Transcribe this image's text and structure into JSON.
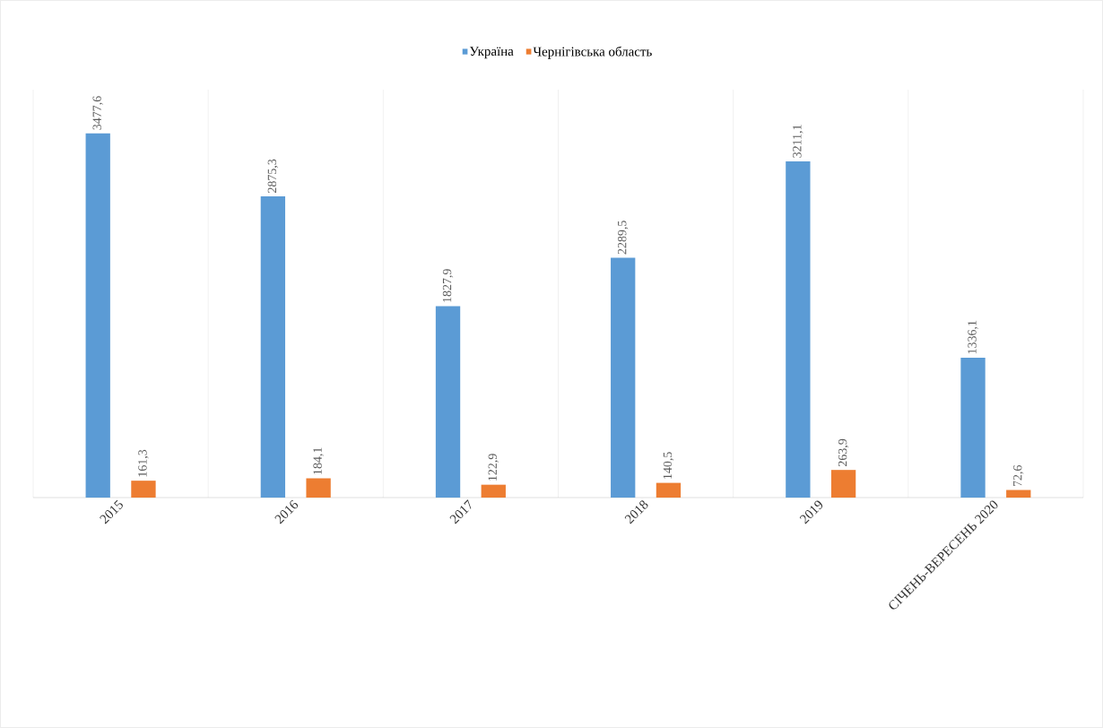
{
  "chart_data": {
    "type": "bar",
    "categories": [
      "2015",
      "2016",
      "2017",
      "2018",
      "2019",
      "СІЧЕНЬ-ВЕРЕСЕНЬ 2020"
    ],
    "series": [
      {
        "name": "Україна",
        "color": "#5b9bd5",
        "values": [
          3477.6,
          2875.3,
          1827.9,
          2289.5,
          3211.1,
          1336.1
        ],
        "value_labels": [
          "3477,6",
          "2875,3",
          "1827,9",
          "2289,5",
          "3211,1",
          "1336,1"
        ]
      },
      {
        "name": "Чернігівська область",
        "color": "#ed7d31",
        "values": [
          161.3,
          184.1,
          122.9,
          140.5,
          263.9,
          72.6
        ],
        "value_labels": [
          "161,3",
          "184,1",
          "122,9",
          "140,5",
          "263,9",
          "72,6"
        ]
      }
    ],
    "grid": "x",
    "legend": "top"
  }
}
